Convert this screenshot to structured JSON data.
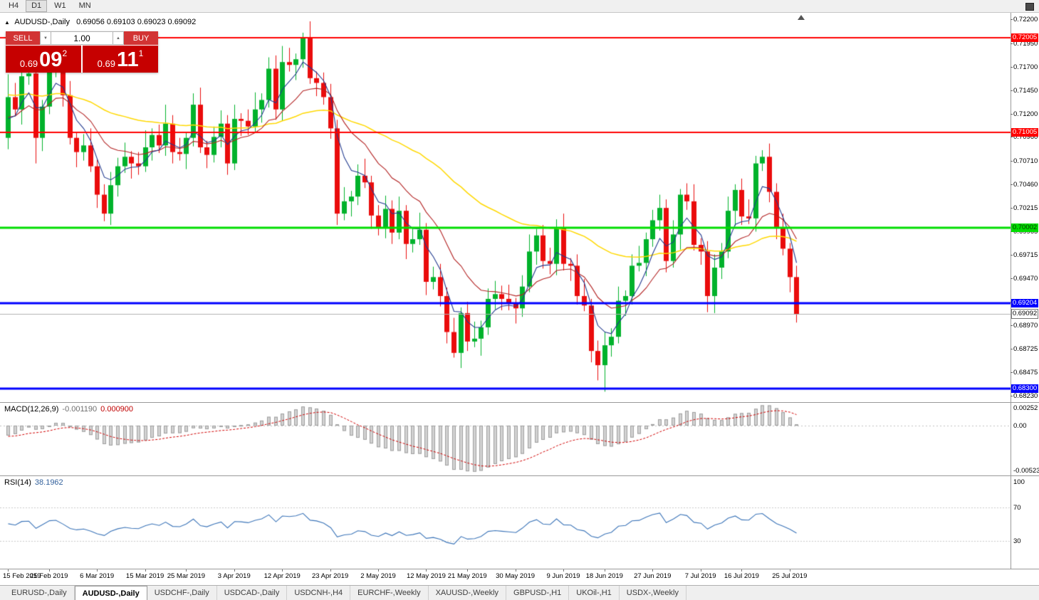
{
  "toolbar": {
    "periods": [
      "H4",
      "D1",
      "W1",
      "MN"
    ],
    "active": "D1"
  },
  "window": {
    "title_symbol": "AUDUSD-,Daily",
    "ohlc_text": "0.69056 0.69103 0.69023 0.69092"
  },
  "icons": {
    "panel_toggle": "▲",
    "spin_down": "▼",
    "spin_up": "▲"
  },
  "trade_panel": {
    "sell_label": "SELL",
    "buy_label": "BUY",
    "volume": "1.00",
    "sell_price_small": "0.69",
    "sell_price_big": "09",
    "sell_price_sup": "2",
    "buy_price_small": "0.69",
    "buy_price_big": "11",
    "buy_price_sup": "1"
  },
  "chart_data": {
    "type": "candlestick",
    "symbol": "AUDUSD",
    "timeframe": "Daily",
    "price_range": {
      "max": 0.7227,
      "min": 0.6816
    },
    "price_axis_ticks": [
      "0.72200",
      "0.71950",
      "0.71700",
      "0.71450",
      "0.71200",
      "0.70960",
      "0.70710",
      "0.70460",
      "0.70215",
      "0.69965",
      "0.69715",
      "0.69470",
      "0.69220",
      "0.68970",
      "0.68725",
      "0.68475",
      "0.68230"
    ],
    "hlines": [
      {
        "price": 0.72005,
        "label": "0.72005",
        "color": "#ff0000",
        "text_color": "#ffffff",
        "width": 2
      },
      {
        "price": 0.71005,
        "label": "0.71005",
        "color": "#ff0000",
        "text_color": "#ffffff",
        "width": 2
      },
      {
        "price": 0.70002,
        "label": "0.70002",
        "color": "#00dd00",
        "text_color": "#063300",
        "width": 3
      },
      {
        "price": 0.69204,
        "label": "0.69204",
        "color": "#0000ff",
        "text_color": "#ffffff",
        "width": 3
      },
      {
        "price": 0.683,
        "label": "0.68300",
        "color": "#0000ff",
        "text_color": "#ffffff",
        "width": 3
      }
    ],
    "current_price": {
      "value": 0.69092,
      "label": "0.69092",
      "line_color": "#b0b0b0"
    },
    "colors": {
      "up": "#00b22b",
      "down": "#ea0c0c"
    },
    "moving_averages": [
      {
        "period": 50,
        "color": "#ffd800",
        "width": 1.5
      },
      {
        "period": 14,
        "color": "#b22222",
        "width": 1.1
      },
      {
        "period": 5,
        "color": "#223a8f",
        "width": 1.1
      }
    ],
    "prehistory_closes": [
      0.718,
      0.715,
      0.709,
      0.705,
      0.699,
      0.701,
      0.706,
      0.708,
      0.712,
      0.716,
      0.719,
      0.721,
      0.725,
      0.727,
      0.724,
      0.72,
      0.716,
      0.714,
      0.711,
      0.709,
      0.708,
      0.71,
      0.714,
      0.712,
      0.708,
      0.706,
      0.709,
      0.711,
      0.713,
      0.7095
    ],
    "first_open": 0.7095,
    "closes": [
      0.7138,
      0.7125,
      0.716,
      0.7163,
      0.7095,
      0.7128,
      0.717,
      0.7175,
      0.714,
      0.7095,
      0.708,
      0.7087,
      0.7065,
      0.7035,
      0.7015,
      0.7045,
      0.7065,
      0.7075,
      0.7068,
      0.7065,
      0.7085,
      0.7098,
      0.7087,
      0.711,
      0.708,
      0.7078,
      0.7095,
      0.713,
      0.7085,
      0.7077,
      0.7096,
      0.711,
      0.7068,
      0.7115,
      0.7113,
      0.7107,
      0.7125,
      0.7135,
      0.7168,
      0.7125,
      0.7175,
      0.7172,
      0.7178,
      0.72,
      0.7158,
      0.7153,
      0.7138,
      0.7105,
      0.7015,
      0.7028,
      0.7033,
      0.7055,
      0.7048,
      0.7013,
      0.7,
      0.702,
      0.6995,
      0.7018,
      0.6983,
      0.6988,
      0.6998,
      0.6943,
      0.6948,
      0.6928,
      0.689,
      0.6868,
      0.691,
      0.688,
      0.6883,
      0.6895,
      0.6925,
      0.693,
      0.6925,
      0.692,
      0.6915,
      0.6938,
      0.6975,
      0.6992,
      0.6965,
      0.6962,
      0.7,
      0.6962,
      0.696,
      0.6928,
      0.6918,
      0.687,
      0.6855,
      0.6876,
      0.6885,
      0.6923,
      0.6928,
      0.696,
      0.6963,
      0.6988,
      0.7008,
      0.7021,
      0.6965,
      0.6993,
      0.7035,
      0.7028,
      0.6982,
      0.6975,
      0.6928,
      0.6958,
      0.6975,
      0.7018,
      0.704,
      0.7012,
      0.701,
      0.7068,
      0.7075,
      0.7038,
      0.7,
      0.6978,
      0.6948,
      0.6909
    ],
    "wick_up_pattern": [
      0.0009,
      0.0015,
      0.0006,
      0.0012,
      0.0018,
      0.0007,
      0.0011,
      0.0014
    ],
    "wick_down_pattern": [
      0.0012,
      0.0007,
      0.0016,
      0.0009,
      0.0006,
      0.0014,
      0.0008,
      0.0011
    ],
    "wick_overrides": {
      "0": {
        "h": 0.7162
      },
      "4": {
        "l": 0.7068
      },
      "15": {
        "l": 0.7003
      },
      "23": {
        "h": 0.713
      },
      "38": {
        "h": 0.718
      },
      "40": {
        "h": 0.7192
      },
      "43": {
        "h": 0.7206
      },
      "48": {
        "l": 0.7003
      },
      "65": {
        "l": 0.6863
      },
      "67": {
        "l": 0.687
      },
      "69": {
        "l": 0.6865
      },
      "85": {
        "l": 0.6858
      },
      "86": {
        "l": 0.6839
      },
      "87": {
        "l": 0.6827
      },
      "102": {
        "l": 0.6911
      },
      "103": {
        "l": 0.691
      },
      "109": {
        "h": 0.7076
      },
      "110": {
        "h": 0.7082
      }
    }
  },
  "macd": {
    "title": "MACD(12,26,9)",
    "value_main": "-0.001190",
    "value_signal": "0.000900",
    "fast": 12,
    "slow": 26,
    "signal": 9,
    "axis_max_label": "0.00252",
    "axis_zero_label": "0.00",
    "axis_min_label": "-0.00523",
    "hist_fill": "#d2d2d2",
    "hist_stroke": "#9f9f9f",
    "signal_color": "#d00000"
  },
  "rsi": {
    "title": "RSI(14)",
    "value": "38.1962",
    "period": 14,
    "axis_labels": [
      {
        "v": 100,
        "t": "100"
      },
      {
        "v": 70,
        "t": "70"
      },
      {
        "v": 30,
        "t": "30"
      }
    ],
    "levels": [
      70,
      30
    ],
    "line_color": "#3b74b8",
    "level_color": "#c9c9c9"
  },
  "date_axis": [
    {
      "t": "15 Feb 2019",
      "i": 0
    },
    {
      "t": "25 Feb 2019",
      "i": 6
    },
    {
      "t": "6 Mar 2019",
      "i": 13
    },
    {
      "t": "15 Mar 2019",
      "i": 20
    },
    {
      "t": "25 Mar 2019",
      "i": 26
    },
    {
      "t": "3 Apr 2019",
      "i": 33
    },
    {
      "t": "12 Apr 2019",
      "i": 40
    },
    {
      "t": "23 Apr 2019",
      "i": 47
    },
    {
      "t": "2 May 2019",
      "i": 54
    },
    {
      "t": "12 May 2019",
      "i": 61
    },
    {
      "t": "21 May 2019",
      "i": 67
    },
    {
      "t": "30 May 2019",
      "i": 74
    },
    {
      "t": "9 Jun 2019",
      "i": 81
    },
    {
      "t": "18 Jun 2019",
      "i": 87
    },
    {
      "t": "27 Jun 2019",
      "i": 94
    },
    {
      "t": "7 Jul 2019",
      "i": 101
    },
    {
      "t": "16 Jul 2019",
      "i": 107
    },
    {
      "t": "25 Jul 2019",
      "i": 114
    }
  ],
  "tabs": {
    "active_index": 1,
    "items": [
      "EURUSD-,Daily",
      "AUDUSD-,Daily",
      "USDCHF-,Daily",
      "USDCAD-,Daily",
      "USDCNH-,H4",
      "EURCHF-,Weekly",
      "XAUUSD-,Weekly",
      "GBPUSD-,H1",
      "UKOil-,H1",
      "USDX-,Weekly"
    ]
  }
}
